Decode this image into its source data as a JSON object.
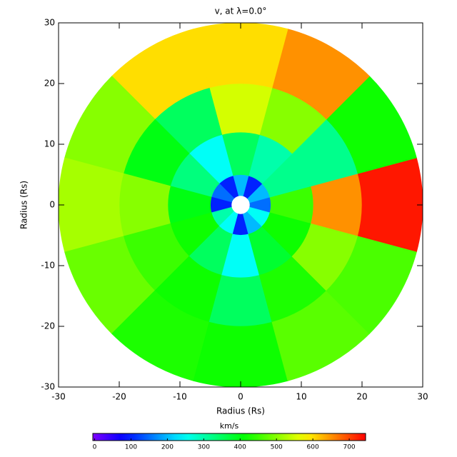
{
  "chart_data": {
    "type": "polar-heatmap",
    "title": "v, at λ=0.0°",
    "x_label": "Radius (Rs)",
    "y_label": "Radius (Rs)",
    "xlim": [
      -30,
      30
    ],
    "ylim": [
      -30,
      30
    ],
    "xticks": [
      -30,
      -20,
      -10,
      0,
      10,
      20,
      30
    ],
    "yticks": [
      -30,
      -20,
      -10,
      0,
      10,
      20,
      30
    ],
    "theta_edges": [
      -15,
      15,
      45,
      75,
      105,
      135,
      165,
      195,
      225,
      255,
      285,
      315,
      345
    ],
    "r_edges": [
      1.5,
      5,
      12,
      20,
      30
    ],
    "values": [
      [
        150,
        450,
        650,
        730
      ],
      [
        200,
        320,
        320,
        420
      ],
      [
        100,
        300,
        500,
        650
      ],
      [
        200,
        350,
        550,
        600
      ],
      [
        100,
        250,
        350,
        600
      ],
      [
        150,
        330,
        400,
        500
      ],
      [
        100,
        400,
        500,
        520
      ],
      [
        300,
        420,
        450,
        480
      ],
      [
        250,
        350,
        420,
        430
      ],
      [
        100,
        250,
        350,
        420
      ],
      [
        200,
        380,
        430,
        470
      ],
      [
        250,
        420,
        500,
        460
      ]
    ],
    "colormap": "rainbow",
    "colorbar_label": "km/s",
    "zlim": [
      -5,
      745
    ],
    "zticks": [
      0,
      100,
      200,
      300,
      400,
      500,
      600,
      700
    ]
  }
}
